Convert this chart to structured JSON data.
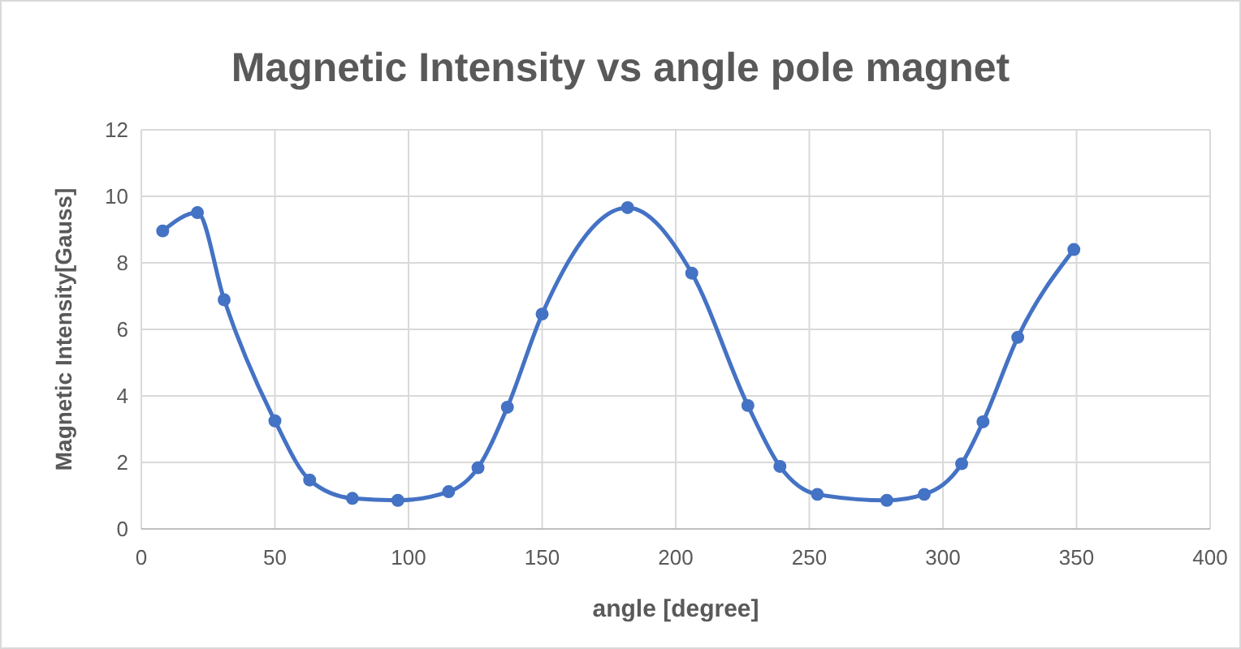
{
  "chart_data": {
    "type": "line",
    "title": "Magnetic Intensity vs angle pole magnet",
    "xlabel": "angle [degree]",
    "ylabel": "Magnetic Intensity[Gauss]",
    "x": [
      8,
      21,
      31,
      50,
      63,
      79,
      96,
      115,
      126,
      137,
      150,
      182,
      206,
      227,
      239,
      253,
      279,
      293,
      307,
      315,
      328,
      349
    ],
    "series": [
      {
        "color": "#4472c4",
        "values": [
          8.96,
          9.51,
          6.89,
          3.25,
          1.47,
          0.92,
          0.86,
          1.12,
          1.84,
          3.66,
          6.46,
          9.66,
          7.69,
          3.71,
          1.88,
          1.04,
          0.86,
          1.04,
          1.96,
          3.22,
          5.76,
          8.4
        ]
      }
    ],
    "xlim": [
      0,
      400
    ],
    "xticks": [
      0,
      50,
      100,
      150,
      200,
      250,
      300,
      350,
      400
    ],
    "ylim": [
      0,
      12
    ],
    "yticks": [
      0,
      2,
      4,
      6,
      8,
      10,
      12
    ],
    "grid": true,
    "marker": "circle",
    "line_style": "solid"
  }
}
